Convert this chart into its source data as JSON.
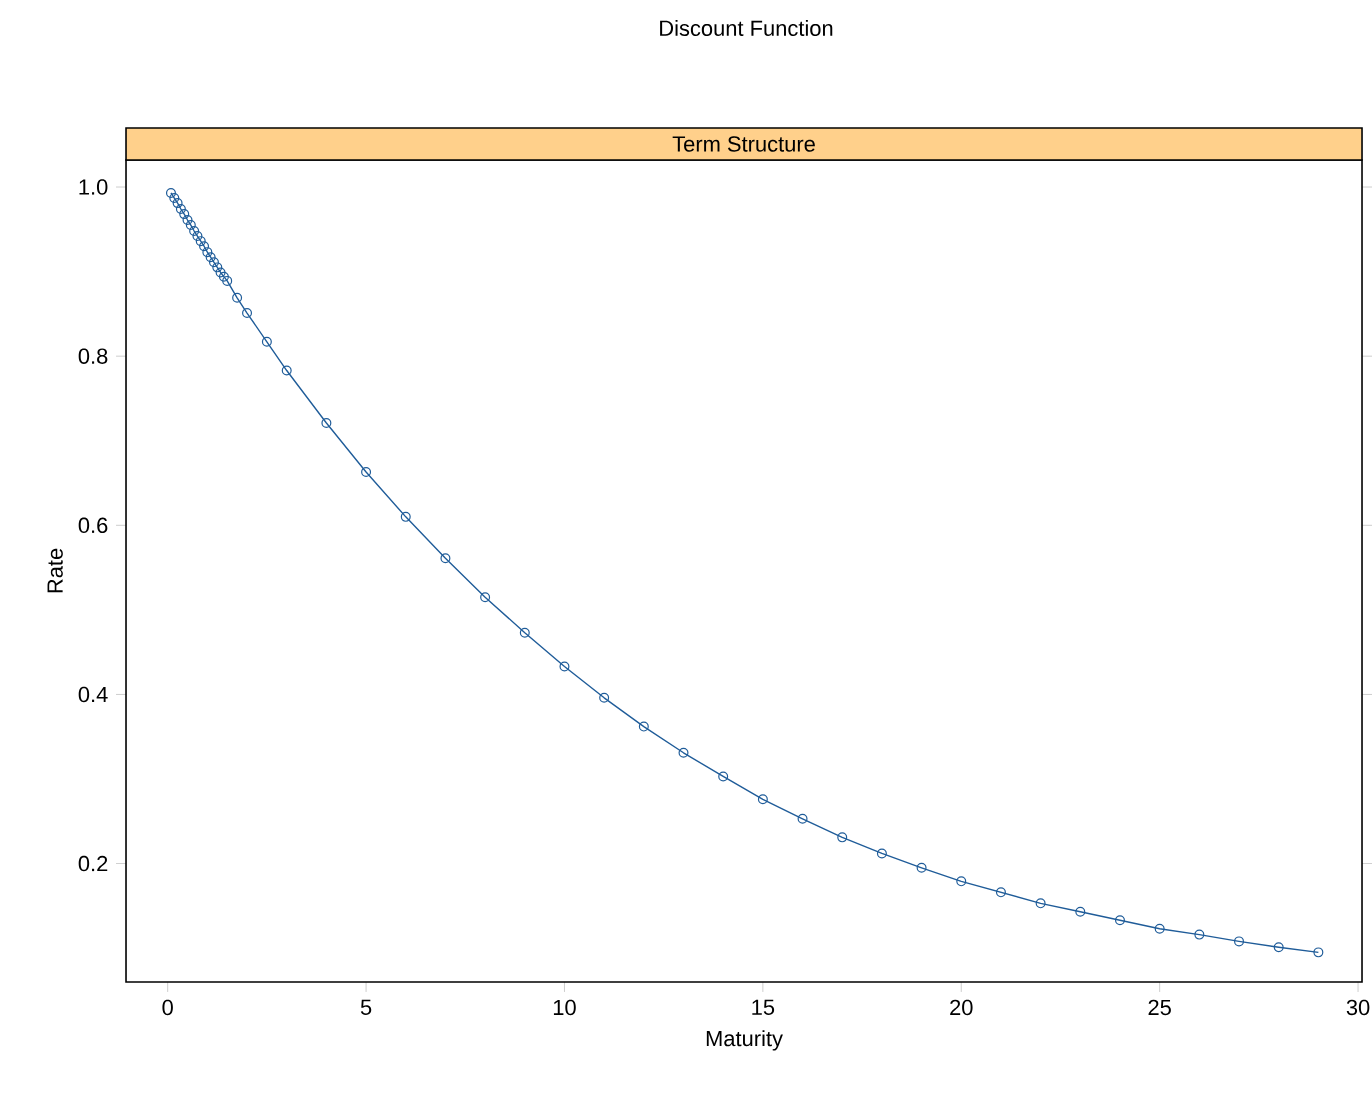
{
  "chart_data": {
    "type": "line",
    "title": "Discount Function",
    "subtitle": "Term Structure",
    "xlabel": "Maturity",
    "ylabel": "Rate",
    "x": [
      0.083,
      0.167,
      0.25,
      0.333,
      0.417,
      0.5,
      0.583,
      0.667,
      0.75,
      0.833,
      0.917,
      1,
      1.083,
      1.167,
      1.25,
      1.333,
      1.417,
      1.5,
      1.75,
      2,
      2.5,
      3,
      4,
      5,
      6,
      7,
      8,
      9,
      10,
      11,
      12,
      13,
      14,
      15,
      16,
      17,
      18,
      19,
      20,
      21,
      22,
      23,
      24,
      25,
      26,
      27,
      28,
      29
    ],
    "series": [
      {
        "color": "#1f5c99",
        "values": [
          0.993,
          0.987,
          0.981,
          0.974,
          0.968,
          0.961,
          0.955,
          0.948,
          0.942,
          0.936,
          0.93,
          0.923,
          0.917,
          0.911,
          0.905,
          0.899,
          0.894,
          0.889,
          0.869,
          0.851,
          0.817,
          0.783,
          0.721,
          0.663,
          0.61,
          0.561,
          0.515,
          0.473,
          0.433,
          0.396,
          0.362,
          0.331,
          0.303,
          0.276,
          0.253,
          0.231,
          0.212,
          0.195,
          0.179,
          0.166,
          0.153,
          0.143,
          0.133,
          0.123,
          0.116,
          0.108,
          0.101,
          0.095
        ]
      }
    ],
    "xlim": [
      -1.05,
      30.1
    ],
    "ylim": [
      0.06,
      1.032
    ],
    "xticks": [
      0,
      5,
      10,
      15,
      20,
      25,
      30
    ],
    "yticks": [
      0.2,
      0.4,
      0.6,
      0.8,
      {
        "value": 1.0,
        "label": "1.0"
      }
    ],
    "marker": "circle",
    "line_style": "solid",
    "grid": false
  }
}
